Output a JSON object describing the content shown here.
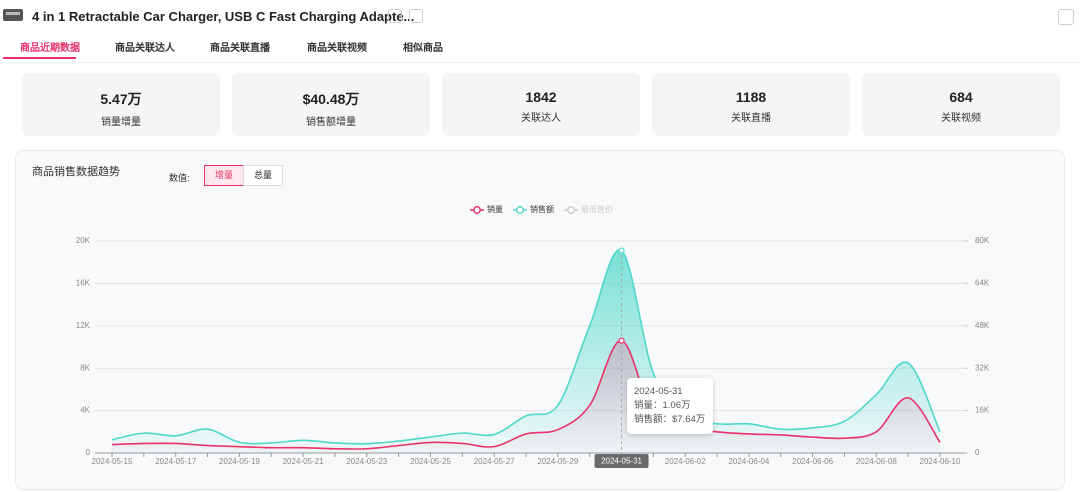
{
  "header": {
    "title": "4 in 1 Retractable Car Charger, USB C Fast Charging Adapte..."
  },
  "tabs": [
    "商品近期数据",
    "商品关联达人",
    "商品关联直播",
    "商品关联视频",
    "相似商品"
  ],
  "stats": [
    {
      "value": "5.47万",
      "label": "销量增量"
    },
    {
      "value": "$40.48万",
      "label": "销售额增量"
    },
    {
      "value": "1842",
      "label": "关联达人"
    },
    {
      "value": "1188",
      "label": "关联直播"
    },
    {
      "value": "684",
      "label": "关联视频"
    }
  ],
  "panel": {
    "title": "商品销售数据趋势",
    "mode_label": "数值:",
    "modes": [
      "增量",
      "总量"
    ]
  },
  "tooltip": {
    "date": "2024-05-31",
    "lines": [
      "销量：1.06万",
      "销售额：$7.64万"
    ]
  },
  "chart_data": {
    "type": "line",
    "categories": [
      "2024-05-15",
      null,
      "2024-05-17",
      null,
      "2024-05-19",
      null,
      "2024-05-21",
      null,
      "2024-05-23",
      null,
      "2024-05-25",
      null,
      "2024-05-27",
      null,
      "2024-05-29",
      null,
      "2024-05-31",
      null,
      "2024-06-02",
      null,
      "2024-06-04",
      null,
      "2024-06-06",
      null,
      "2024-06-08",
      null,
      "2024-06-10"
    ],
    "active_index": 16,
    "series": [
      {
        "name": "销量",
        "color": "#e8336a",
        "axis": "y",
        "values": [
          800,
          900,
          900,
          700,
          600,
          500,
          500,
          400,
          400,
          700,
          1000,
          900,
          600,
          1800,
          2200,
          4500,
          10600,
          3500,
          2500,
          2000,
          1800,
          1700,
          1500,
          1400,
          2000,
          5200,
          1000
        ]
      },
      {
        "name": "销售额",
        "color": "#4fd8c9",
        "axis": "y2",
        "values": [
          5000,
          7500,
          6500,
          9000,
          4000,
          3800,
          4800,
          3800,
          3500,
          4500,
          6000,
          7500,
          7000,
          14000,
          18000,
          48000,
          76400,
          30000,
          14000,
          11000,
          11000,
          9000,
          9500,
          12000,
          22000,
          34000,
          8000
        ]
      }
    ],
    "inactive_legend": "最低售价",
    "ylim": [
      0,
      20000
    ],
    "yticks": [
      0,
      {
        "value": 4000,
        "label": "4K"
      },
      {
        "value": 8000,
        "label": "8K"
      },
      {
        "value": 12000,
        "label": "12K"
      },
      {
        "value": 16000,
        "label": "16K"
      },
      {
        "value": 20000,
        "label": "20K"
      }
    ],
    "y2lim": [
      0,
      80000
    ],
    "y2ticks": [
      0,
      {
        "value": 16000,
        "label": "16K"
      },
      {
        "value": 32000,
        "label": "32K"
      },
      {
        "value": 48000,
        "label": "48K"
      },
      {
        "value": 64000,
        "label": "64K"
      },
      {
        "value": 80000,
        "label": "80K"
      }
    ],
    "grid": true
  }
}
